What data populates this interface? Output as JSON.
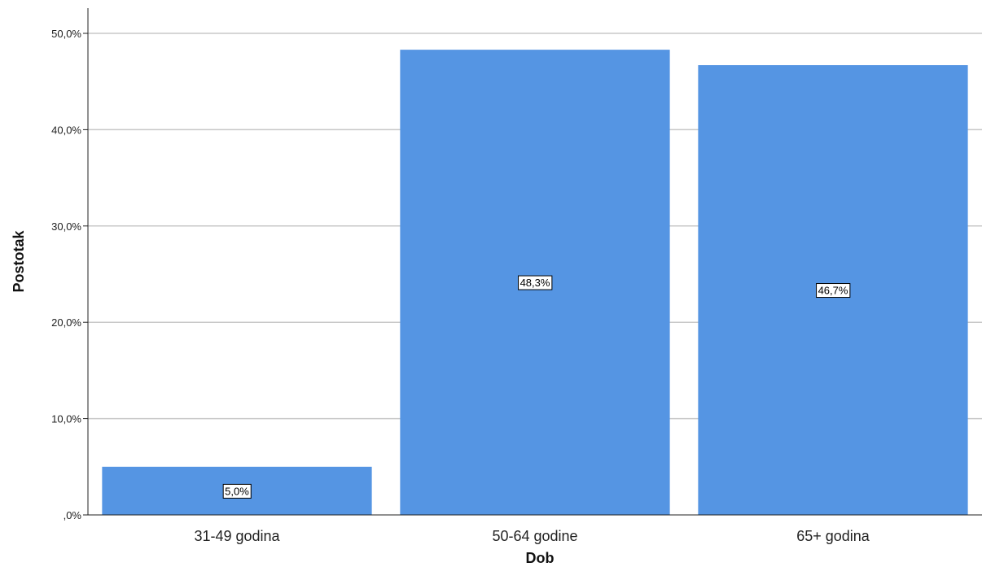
{
  "chart_data": {
    "type": "bar",
    "title": "",
    "xlabel": "Dob",
    "ylabel": "Postotak",
    "categories": [
      "31-49 godina",
      "50-64 godine",
      "65+ godina"
    ],
    "values": [
      5.0,
      48.3,
      46.7
    ],
    "data_labels": [
      "5,0%",
      "48,3%",
      "46,7%"
    ],
    "ylim": [
      0,
      53
    ],
    "yticks": [
      0,
      10,
      20,
      30,
      40,
      50
    ],
    "ytick_labels": [
      ",0%",
      "10,0%",
      "20,0%",
      "30,0%",
      "40,0%",
      "50,0%"
    ],
    "grid": true,
    "legend": "none",
    "colors": {
      "bar": "#5595E3",
      "grid": "#C8C8C8",
      "axis": "#222222"
    }
  }
}
